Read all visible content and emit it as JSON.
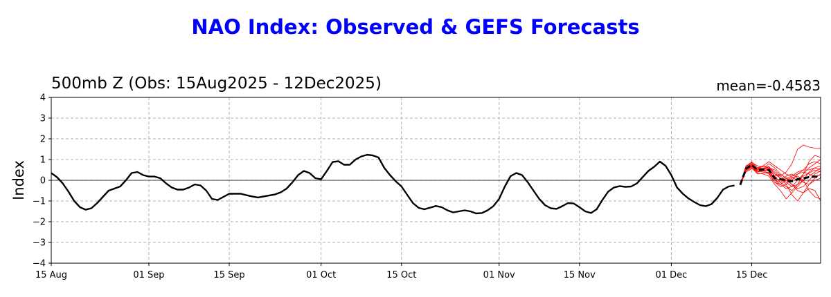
{
  "chart_data": {
    "type": "line",
    "suptitle": "NAO Index: Observed & GEFS Forecasts",
    "title": "500mb Z (Obs: 15Aug2025 - 12Dec2025)",
    "mean_label": "mean=-0.4583",
    "ylabel": "Index",
    "ylim": [
      -4,
      4
    ],
    "yticks": [
      -4,
      -3,
      -2,
      -1,
      0,
      1,
      2,
      3,
      4
    ],
    "ytick_labels": [
      "−4",
      "−3",
      "−2",
      "−1",
      "0",
      "1",
      "2",
      "3",
      "4"
    ],
    "xlim": [
      "2025-08-15",
      "2025-12-27"
    ],
    "xticks": [
      "2025-08-15",
      "2025-09-01",
      "2025-09-15",
      "2025-10-01",
      "2025-10-15",
      "2025-11-01",
      "2025-11-15",
      "2025-12-01",
      "2025-12-15"
    ],
    "xtick_labels": [
      "15 Aug",
      "01 Sep",
      "15 Sep",
      "01 Oct",
      "15 Oct",
      "01 Nov",
      "15 Nov",
      "01 Dec",
      "15 Dec"
    ],
    "grid": true,
    "colors": {
      "title": "#0000ff",
      "observed": "#000000",
      "members": "#ff0000",
      "ensemble_mean": "#000000",
      "grid": "#b0b0b0"
    },
    "observed": [
      [
        "2025-08-15",
        0.35
      ],
      [
        "2025-08-16",
        0.15
      ],
      [
        "2025-08-17",
        -0.15
      ],
      [
        "2025-08-18",
        -0.55
      ],
      [
        "2025-08-19",
        -1.0
      ],
      [
        "2025-08-20",
        -1.3
      ],
      [
        "2025-08-21",
        -1.42
      ],
      [
        "2025-08-22",
        -1.35
      ],
      [
        "2025-08-23",
        -1.1
      ],
      [
        "2025-08-24",
        -0.8
      ],
      [
        "2025-08-25",
        -0.5
      ],
      [
        "2025-08-26",
        -0.4
      ],
      [
        "2025-08-27",
        -0.3
      ],
      [
        "2025-08-28",
        0.0
      ],
      [
        "2025-08-29",
        0.35
      ],
      [
        "2025-08-30",
        0.4
      ],
      [
        "2025-08-31",
        0.25
      ],
      [
        "2025-09-01",
        0.18
      ],
      [
        "2025-09-02",
        0.18
      ],
      [
        "2025-09-03",
        0.1
      ],
      [
        "2025-09-04",
        -0.15
      ],
      [
        "2025-09-05",
        -0.35
      ],
      [
        "2025-09-06",
        -0.45
      ],
      [
        "2025-09-07",
        -0.45
      ],
      [
        "2025-09-08",
        -0.35
      ],
      [
        "2025-09-09",
        -0.2
      ],
      [
        "2025-09-10",
        -0.25
      ],
      [
        "2025-09-11",
        -0.5
      ],
      [
        "2025-09-12",
        -0.9
      ],
      [
        "2025-09-13",
        -0.95
      ],
      [
        "2025-09-14",
        -0.8
      ],
      [
        "2025-09-15",
        -0.65
      ],
      [
        "2025-09-16",
        -0.65
      ],
      [
        "2025-09-17",
        -0.65
      ],
      [
        "2025-09-18",
        -0.72
      ],
      [
        "2025-09-19",
        -0.78
      ],
      [
        "2025-09-20",
        -0.83
      ],
      [
        "2025-09-21",
        -0.78
      ],
      [
        "2025-09-22",
        -0.73
      ],
      [
        "2025-09-23",
        -0.68
      ],
      [
        "2025-09-24",
        -0.58
      ],
      [
        "2025-09-25",
        -0.4
      ],
      [
        "2025-09-26",
        -0.1
      ],
      [
        "2025-09-27",
        0.25
      ],
      [
        "2025-09-28",
        0.45
      ],
      [
        "2025-09-29",
        0.35
      ],
      [
        "2025-09-30",
        0.1
      ],
      [
        "2025-10-01",
        0.05
      ],
      [
        "2025-10-02",
        0.45
      ],
      [
        "2025-10-03",
        0.88
      ],
      [
        "2025-10-04",
        0.92
      ],
      [
        "2025-10-05",
        0.75
      ],
      [
        "2025-10-06",
        0.75
      ],
      [
        "2025-10-07",
        1.0
      ],
      [
        "2025-10-08",
        1.15
      ],
      [
        "2025-10-09",
        1.23
      ],
      [
        "2025-10-10",
        1.2
      ],
      [
        "2025-10-11",
        1.1
      ],
      [
        "2025-10-12",
        0.6
      ],
      [
        "2025-10-13",
        0.25
      ],
      [
        "2025-10-14",
        -0.05
      ],
      [
        "2025-10-15",
        -0.3
      ],
      [
        "2025-10-16",
        -0.7
      ],
      [
        "2025-10-17",
        -1.1
      ],
      [
        "2025-10-18",
        -1.33
      ],
      [
        "2025-10-19",
        -1.4
      ],
      [
        "2025-10-20",
        -1.32
      ],
      [
        "2025-10-21",
        -1.24
      ],
      [
        "2025-10-22",
        -1.3
      ],
      [
        "2025-10-23",
        -1.45
      ],
      [
        "2025-10-24",
        -1.55
      ],
      [
        "2025-10-25",
        -1.5
      ],
      [
        "2025-10-26",
        -1.45
      ],
      [
        "2025-10-27",
        -1.5
      ],
      [
        "2025-10-28",
        -1.6
      ],
      [
        "2025-10-29",
        -1.58
      ],
      [
        "2025-10-30",
        -1.45
      ],
      [
        "2025-10-31",
        -1.25
      ],
      [
        "2025-11-01",
        -0.9
      ],
      [
        "2025-11-02",
        -0.3
      ],
      [
        "2025-11-03",
        0.2
      ],
      [
        "2025-11-04",
        0.35
      ],
      [
        "2025-11-05",
        0.25
      ],
      [
        "2025-11-06",
        -0.1
      ],
      [
        "2025-11-07",
        -0.5
      ],
      [
        "2025-11-08",
        -0.9
      ],
      [
        "2025-11-09",
        -1.2
      ],
      [
        "2025-11-10",
        -1.35
      ],
      [
        "2025-11-11",
        -1.38
      ],
      [
        "2025-11-12",
        -1.25
      ],
      [
        "2025-11-13",
        -1.1
      ],
      [
        "2025-11-14",
        -1.12
      ],
      [
        "2025-11-15",
        -1.3
      ],
      [
        "2025-11-16",
        -1.5
      ],
      [
        "2025-11-17",
        -1.58
      ],
      [
        "2025-11-18",
        -1.4
      ],
      [
        "2025-11-19",
        -0.95
      ],
      [
        "2025-11-20",
        -0.55
      ],
      [
        "2025-11-21",
        -0.35
      ],
      [
        "2025-11-22",
        -0.28
      ],
      [
        "2025-11-23",
        -0.32
      ],
      [
        "2025-11-24",
        -0.3
      ],
      [
        "2025-11-25",
        -0.15
      ],
      [
        "2025-11-26",
        0.15
      ],
      [
        "2025-11-27",
        0.45
      ],
      [
        "2025-11-28",
        0.65
      ],
      [
        "2025-11-29",
        0.9
      ],
      [
        "2025-11-30",
        0.7
      ],
      [
        "2025-12-01",
        0.25
      ],
      [
        "2025-12-02",
        -0.35
      ],
      [
        "2025-12-03",
        -0.65
      ],
      [
        "2025-12-04",
        -0.88
      ],
      [
        "2025-12-05",
        -1.05
      ],
      [
        "2025-12-06",
        -1.2
      ],
      [
        "2025-12-07",
        -1.25
      ],
      [
        "2025-12-08",
        -1.15
      ],
      [
        "2025-12-09",
        -0.85
      ],
      [
        "2025-12-10",
        -0.45
      ],
      [
        "2025-12-11",
        -0.3
      ],
      [
        "2025-12-12",
        -0.25
      ]
    ],
    "ensemble_mean": [
      [
        "2025-12-13",
        -0.22
      ],
      [
        "2025-12-14",
        0.55
      ],
      [
        "2025-12-15",
        0.75
      ],
      [
        "2025-12-16",
        0.5
      ],
      [
        "2025-12-17",
        0.52
      ],
      [
        "2025-12-18",
        0.5
      ],
      [
        "2025-12-19",
        0.1
      ],
      [
        "2025-12-20",
        0.05
      ],
      [
        "2025-12-21",
        0.0
      ],
      [
        "2025-12-22",
        -0.05
      ],
      [
        "2025-12-23",
        0.05
      ],
      [
        "2025-12-24",
        0.1
      ],
      [
        "2025-12-25",
        0.15
      ],
      [
        "2025-12-26",
        0.18
      ],
      [
        "2025-12-27",
        0.15
      ]
    ],
    "forecast_dates": [
      "2025-12-13",
      "2025-12-14",
      "2025-12-15",
      "2025-12-16",
      "2025-12-17",
      "2025-12-18",
      "2025-12-19",
      "2025-12-20",
      "2025-12-21",
      "2025-12-22",
      "2025-12-23",
      "2025-12-24",
      "2025-12-25",
      "2025-12-26",
      "2025-12-27"
    ],
    "members": [
      [
        -0.22,
        0.65,
        0.9,
        0.6,
        0.7,
        0.65,
        0.3,
        0.2,
        0.4,
        0.8,
        1.5,
        1.7,
        1.6,
        1.55,
        1.5
      ],
      [
        -0.22,
        0.5,
        0.7,
        0.4,
        0.45,
        0.55,
        0.2,
        -0.1,
        -0.3,
        -0.5,
        -0.2,
        0.3,
        0.9,
        1.2,
        1.1
      ],
      [
        -0.22,
        0.45,
        0.6,
        0.35,
        0.3,
        0.2,
        -0.2,
        -0.5,
        -0.9,
        -0.6,
        -0.3,
        0.0,
        0.4,
        0.6,
        0.5
      ],
      [
        -0.22,
        0.7,
        0.85,
        0.7,
        0.65,
        0.6,
        0.3,
        0.1,
        -0.2,
        -0.7,
        -1.0,
        -0.6,
        -0.2,
        0.1,
        0.3
      ],
      [
        -0.22,
        0.6,
        0.8,
        0.5,
        0.55,
        0.8,
        0.6,
        0.3,
        0.1,
        0.0,
        0.3,
        0.5,
        0.8,
        0.9,
        0.8
      ],
      [
        -0.22,
        0.4,
        0.55,
        0.45,
        0.5,
        0.6,
        0.5,
        0.2,
        0.0,
        -0.2,
        -0.4,
        -0.3,
        0.0,
        0.3,
        0.45
      ],
      [
        -0.22,
        0.55,
        0.75,
        0.55,
        0.6,
        0.5,
        0.0,
        -0.2,
        -0.4,
        -0.3,
        0.0,
        0.3,
        0.6,
        0.8,
        1.0
      ],
      [
        -0.22,
        0.5,
        0.65,
        0.4,
        0.5,
        0.45,
        0.1,
        0.0,
        0.2,
        0.3,
        0.1,
        -0.1,
        -0.2,
        0.0,
        0.1
      ],
      [
        -0.22,
        0.6,
        0.8,
        0.45,
        0.4,
        0.3,
        -0.1,
        -0.3,
        -0.2,
        0.1,
        0.2,
        0.0,
        -0.5,
        -0.8,
        -0.9
      ],
      [
        -0.22,
        0.55,
        0.7,
        0.5,
        0.55,
        0.65,
        0.4,
        0.1,
        -0.1,
        -0.3,
        -0.2,
        0.0,
        0.2,
        0.4,
        0.6
      ],
      [
        -0.22,
        0.45,
        0.6,
        0.3,
        0.35,
        0.4,
        0.0,
        -0.1,
        0.1,
        0.2,
        0.4,
        0.5,
        0.5,
        0.6,
        0.7
      ],
      [
        -0.22,
        0.65,
        0.85,
        0.6,
        0.6,
        0.5,
        0.2,
        0.3,
        0.1,
        -0.2,
        -0.5,
        -0.6,
        -0.4,
        -0.5,
        -1.0
      ],
      [
        -0.22,
        0.5,
        0.65,
        0.45,
        0.45,
        0.35,
        -0.1,
        -0.2,
        0.0,
        0.15,
        0.0,
        0.2,
        0.35,
        0.5,
        0.4
      ],
      [
        -0.22,
        0.6,
        0.75,
        0.55,
        0.7,
        0.9,
        0.7,
        0.5,
        0.3,
        0.2,
        0.3,
        0.4,
        0.3,
        0.2,
        0.25
      ]
    ]
  }
}
